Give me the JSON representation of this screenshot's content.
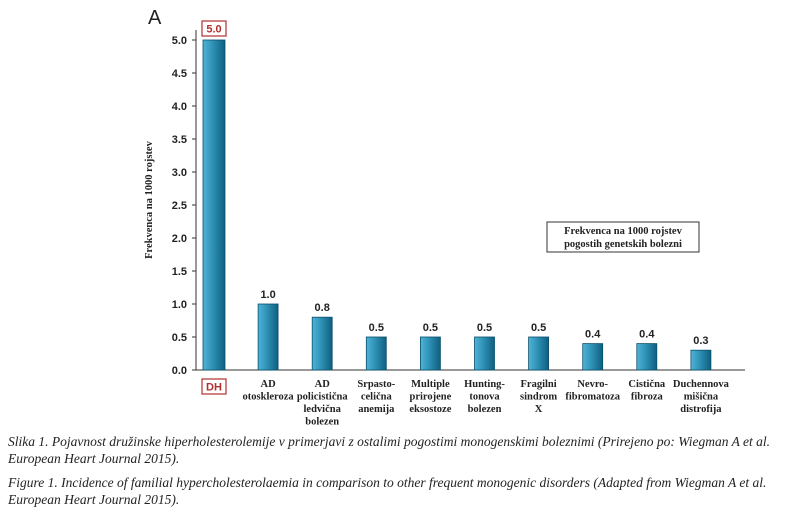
{
  "chart_data": {
    "type": "bar",
    "panel_label": "A",
    "ylabel": "Frekvenca na 1000 rojstev",
    "ylim": [
      0,
      5.0
    ],
    "yticks": [
      "0.0",
      "0.5",
      "1.0",
      "1.5",
      "2.0",
      "2.5",
      "3.0",
      "3.5",
      "4.0",
      "4.5",
      "5.0"
    ],
    "categories": [
      [
        "DH"
      ],
      [
        "AD",
        "otoskleroza"
      ],
      [
        "AD",
        "policistična",
        "ledvična",
        "bolezen"
      ],
      [
        "Srpasto-",
        "celična",
        "anemija"
      ],
      [
        "Multiple",
        "prirojene",
        "eksostoze"
      ],
      [
        "Hunting-",
        "tonova",
        "bolezen"
      ],
      [
        "Fragilni",
        "sindrom",
        "X"
      ],
      [
        "Nevro-",
        "fibromatoza"
      ],
      [
        "Cistična",
        "fibroza"
      ],
      [
        "Duchennova",
        "mišična",
        "distrofija"
      ]
    ],
    "values": [
      5.0,
      1.0,
      0.8,
      0.5,
      0.5,
      0.5,
      0.5,
      0.4,
      0.4,
      0.3
    ],
    "value_labels": [
      "5.0",
      "1.0",
      "0.8",
      "0.5",
      "0.5",
      "0.5",
      "0.5",
      "0.4",
      "0.4",
      "0.3"
    ],
    "legend": [
      "Frekvenca na 1000 rojstev",
      "pogostih genetskih bolezni"
    ],
    "highlight_color": "#b03030",
    "bar_color": "#2a8cb0"
  },
  "caption": {
    "line1": "Slika 1. Pojavnost družinske hiperholesterolemije v primerjavi z ostalimi pogostimi monogenskimi boleznimi (Prirejeno po: Wiegman A et al. European Heart Journal 2015).",
    "line2": "Figure 1. Incidence of familial hypercholesterolaemia in comparison to other frequent monogenic disorders (Adapted from Wiegman A et al. European Heart Journal 2015)."
  }
}
